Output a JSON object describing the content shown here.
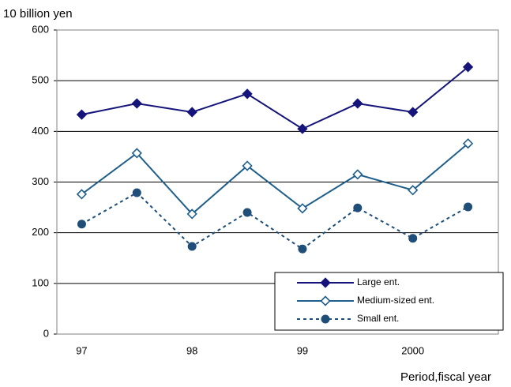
{
  "chart_data": {
    "type": "line",
    "y_label": "10 billion yen",
    "x_label": "Period,fiscal year",
    "categories": [
      "97",
      null,
      "98",
      null,
      "99",
      null,
      "2000",
      null
    ],
    "series": [
      {
        "name": "Large ent.",
        "color": "#14147a",
        "marker": "diamond",
        "line": "solid",
        "values": [
          433,
          455,
          438,
          474,
          405,
          455,
          438,
          527
        ]
      },
      {
        "name": "Medium-sized ent.",
        "color": "#1f5f8b",
        "marker": "open-diamond",
        "line": "solid",
        "values": [
          276,
          357,
          237,
          332,
          248,
          315,
          284,
          376
        ]
      },
      {
        "name": "Small ent.",
        "color": "#1f4e79",
        "marker": "circle",
        "line": "dashed",
        "values": [
          217,
          279,
          173,
          240,
          168,
          249,
          189,
          251
        ]
      }
    ],
    "ylim": [
      0,
      600
    ],
    "yticks": [
      0,
      100,
      200,
      300,
      400,
      500,
      600
    ],
    "grid": true
  }
}
